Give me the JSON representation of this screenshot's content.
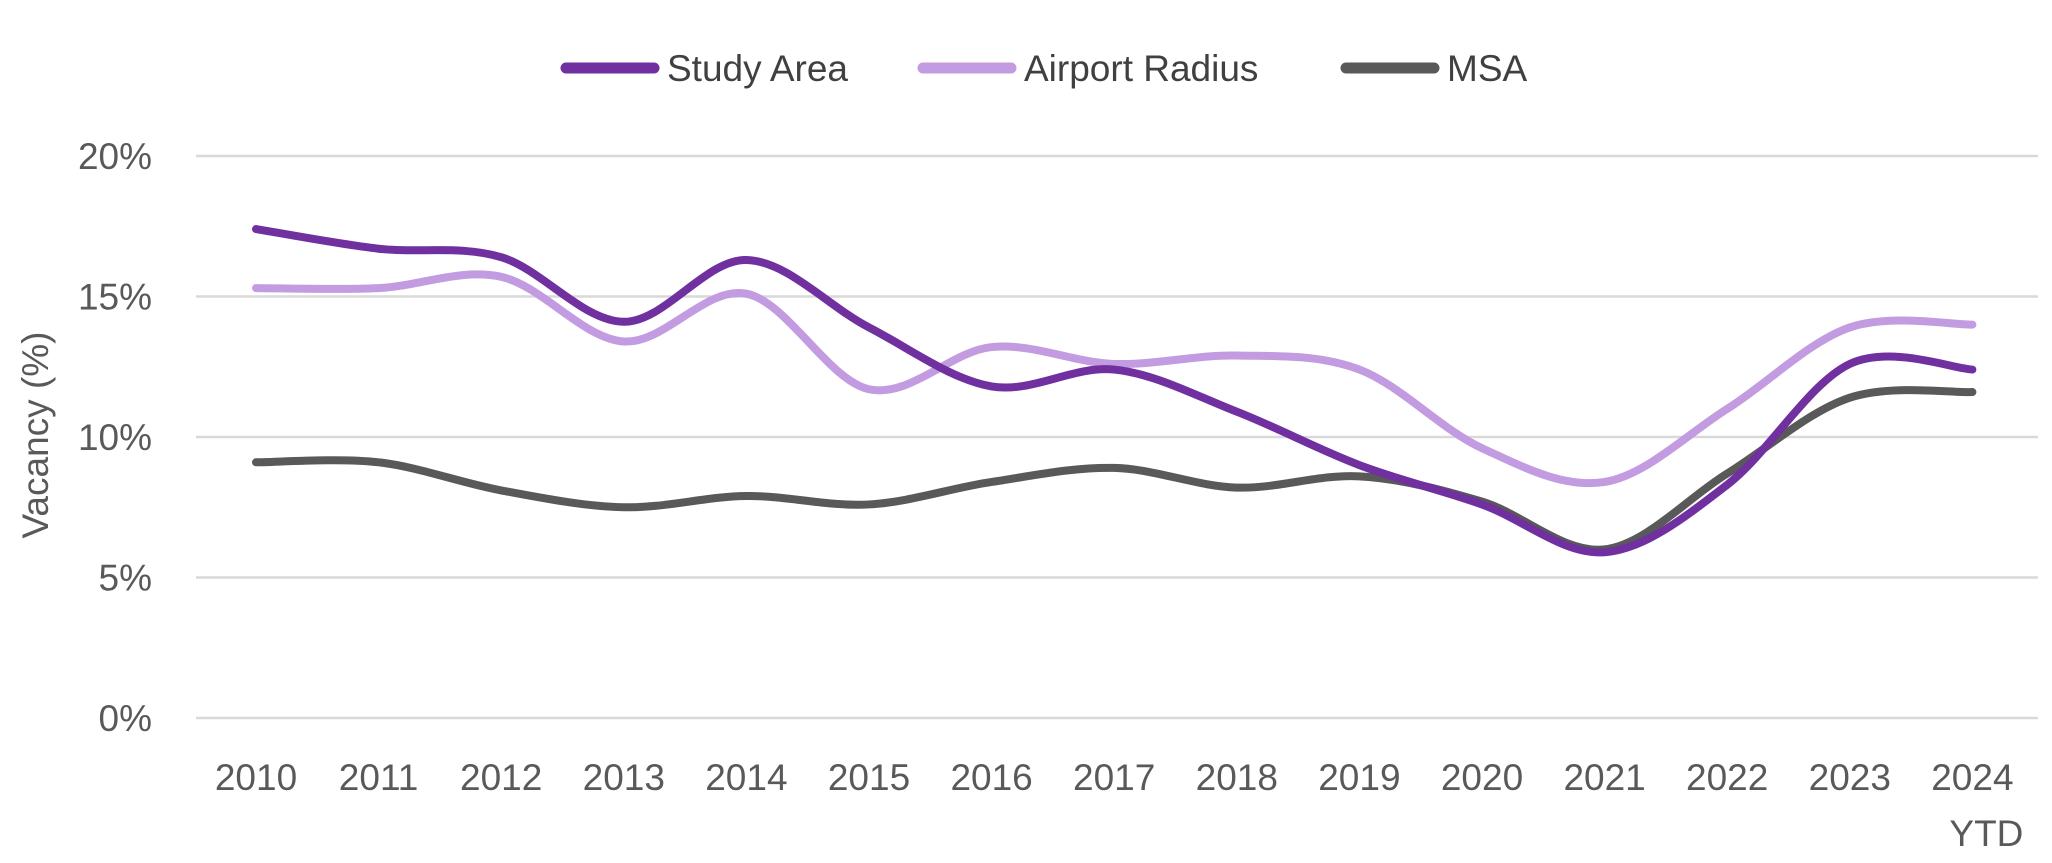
{
  "chart_data": {
    "type": "line",
    "title": "",
    "xlabel": "",
    "ylabel": "Vacancy (%)",
    "ylim": [
      0,
      20
    ],
    "yticks": [
      0,
      5,
      10,
      15,
      20
    ],
    "ytick_labels": [
      "0%",
      "5%",
      "10%",
      "15%",
      "20%"
    ],
    "grid": true,
    "legend_position": "top-center",
    "categories": [
      "2010",
      "2011",
      "2012",
      "2013",
      "2014",
      "2015",
      "2016",
      "2017",
      "2018",
      "2019",
      "2020",
      "2021",
      "2022",
      "2023",
      "2024\nYTD"
    ],
    "category_lines": [
      [
        "2010"
      ],
      [
        "2011"
      ],
      [
        "2012"
      ],
      [
        "2013"
      ],
      [
        "2014"
      ],
      [
        "2015"
      ],
      [
        "2016"
      ],
      [
        "2017"
      ],
      [
        "2018"
      ],
      [
        "2019"
      ],
      [
        "2020"
      ],
      [
        "2021"
      ],
      [
        "2022"
      ],
      [
        "2023"
      ],
      [
        "2024",
        "YTD"
      ]
    ],
    "series": [
      {
        "name": "Study Area",
        "color": "#7030a0",
        "values": [
          17.4,
          16.7,
          16.4,
          14.1,
          16.3,
          13.9,
          11.8,
          12.4,
          10.9,
          9.0,
          7.6,
          5.9,
          8.3,
          12.6,
          12.4
        ]
      },
      {
        "name": "Airport Radius",
        "color": "#c39be0",
        "values": [
          15.3,
          15.3,
          15.7,
          13.4,
          15.1,
          11.7,
          13.2,
          12.6,
          12.9,
          12.4,
          9.6,
          8.4,
          11.0,
          13.9,
          14.0
        ]
      },
      {
        "name": "MSA",
        "color": "#595959",
        "values": [
          9.1,
          9.1,
          8.1,
          7.5,
          7.9,
          7.6,
          8.4,
          8.9,
          8.2,
          8.6,
          7.7,
          6.0,
          8.7,
          11.4,
          11.6
        ]
      }
    ]
  }
}
